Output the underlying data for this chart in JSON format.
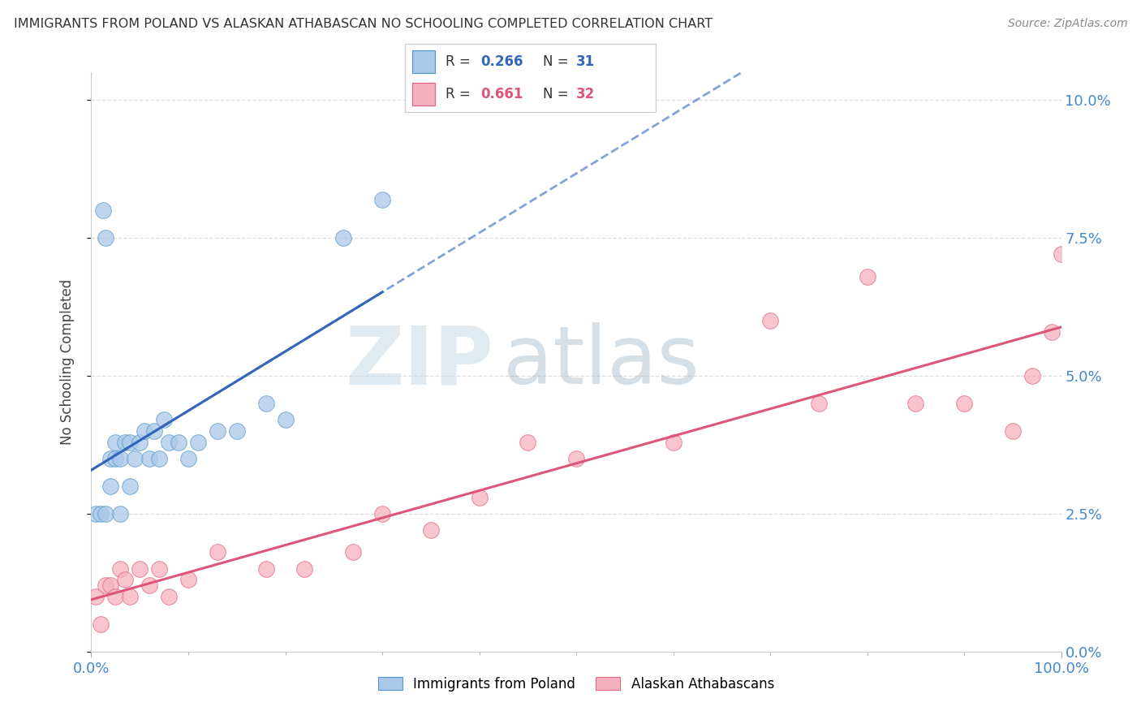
{
  "title": "IMMIGRANTS FROM POLAND VS ALASKAN ATHABASCAN NO SCHOOLING COMPLETED CORRELATION CHART",
  "source": "Source: ZipAtlas.com",
  "ylabel": "No Schooling Completed",
  "legend_blue_r": "0.266",
  "legend_blue_n": "31",
  "legend_pink_r": "0.661",
  "legend_pink_n": "32",
  "legend_blue_label": "Immigrants from Poland",
  "legend_pink_label": "Alaskan Athabascans",
  "blue_dot_color": "#aac8e8",
  "pink_dot_color": "#f5b0c0",
  "blue_edge_color": "#5599cc",
  "pink_edge_color": "#e06880",
  "blue_line_color": "#3366bb",
  "pink_line_color": "#dd5577",
  "blue_r_color": "#3366bb",
  "pink_r_color": "#dd5577",
  "watermark_zip": "ZIP",
  "watermark_atlas": "atlas",
  "bg_color": "#ffffff",
  "grid_color": "#dddddd",
  "tick_color": "#4488cc",
  "blue_x": [
    0.5,
    1.0,
    1.2,
    1.5,
    1.5,
    2.0,
    2.0,
    2.5,
    2.5,
    3.0,
    3.0,
    3.5,
    4.0,
    4.0,
    4.5,
    5.0,
    5.5,
    6.0,
    6.5,
    7.0,
    7.5,
    8.0,
    9.0,
    10.0,
    11.0,
    13.0,
    15.0,
    18.0,
    20.0,
    26.0,
    30.0
  ],
  "blue_y": [
    2.5,
    2.5,
    8.0,
    7.5,
    2.5,
    3.5,
    3.0,
    3.5,
    3.8,
    2.5,
    3.5,
    3.8,
    3.0,
    3.8,
    3.5,
    3.8,
    4.0,
    3.5,
    4.0,
    3.5,
    4.2,
    3.8,
    3.8,
    3.5,
    3.8,
    4.0,
    4.0,
    4.5,
    4.2,
    7.5,
    8.2
  ],
  "pink_x": [
    0.5,
    1.0,
    1.5,
    2.0,
    2.5,
    3.0,
    3.5,
    4.0,
    5.0,
    6.0,
    7.0,
    8.0,
    10.0,
    13.0,
    18.0,
    22.0,
    27.0,
    30.0,
    35.0,
    40.0,
    45.0,
    50.0,
    60.0,
    70.0,
    75.0,
    80.0,
    85.0,
    90.0,
    95.0,
    97.0,
    99.0,
    100.0
  ],
  "pink_y": [
    1.0,
    0.5,
    1.2,
    1.2,
    1.0,
    1.5,
    1.3,
    1.0,
    1.5,
    1.2,
    1.5,
    1.0,
    1.3,
    1.8,
    1.5,
    1.5,
    1.8,
    2.5,
    2.2,
    2.8,
    3.8,
    3.5,
    3.8,
    6.0,
    4.5,
    6.8,
    4.5,
    4.5,
    4.0,
    5.0,
    5.8,
    7.2
  ],
  "xlim": [
    0,
    100
  ],
  "ylim": [
    0,
    10.5
  ],
  "yticks": [
    0,
    2.5,
    5.0,
    7.5,
    10.0
  ],
  "ytick_labels": [
    "0.0%",
    "2.5%",
    "5.0%",
    "7.5%",
    "10.0%"
  ],
  "xtick_left": "0.0%",
  "xtick_right": "100.0%",
  "dot_size": 200
}
